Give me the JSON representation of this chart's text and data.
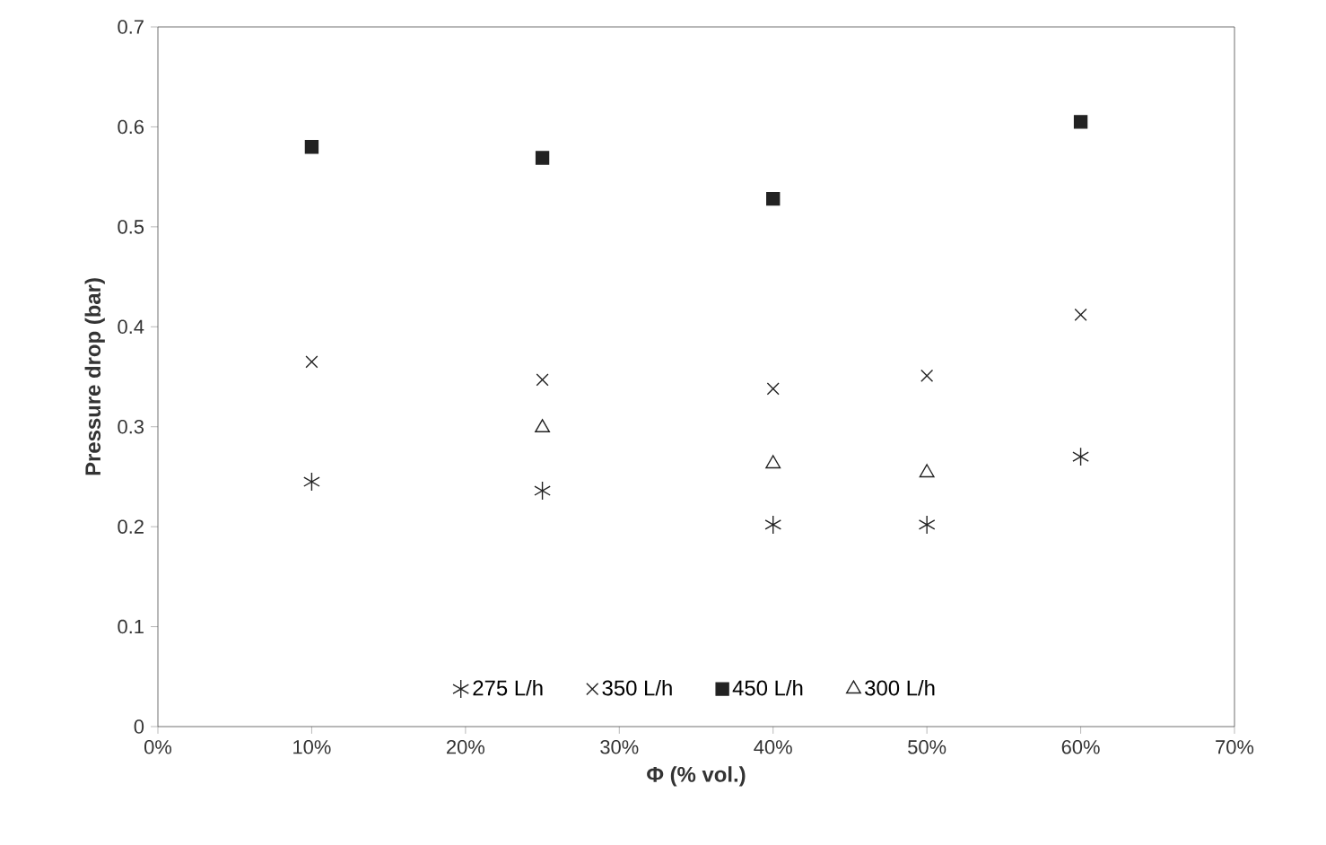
{
  "chart_data": {
    "type": "scatter",
    "xlabel": "Φ (% vol.)",
    "ylabel": "Pressure drop (bar)",
    "xlim": [
      0,
      70
    ],
    "ylim": [
      0,
      0.7
    ],
    "xticks": [
      {
        "value": 0,
        "label": "0%"
      },
      {
        "value": 10,
        "label": "10%"
      },
      {
        "value": 20,
        "label": "20%"
      },
      {
        "value": 30,
        "label": "30%"
      },
      {
        "value": 40,
        "label": "40%"
      },
      {
        "value": 50,
        "label": "50%"
      },
      {
        "value": 60,
        "label": "60%"
      },
      {
        "value": 70,
        "label": "70%"
      }
    ],
    "yticks": [
      0,
      0.1,
      0.2,
      0.3,
      0.4,
      0.5,
      0.6,
      0.7
    ],
    "grid": false,
    "legend": "bottom",
    "series": [
      {
        "name": "275 L/h",
        "color": "#222222",
        "x": [
          10,
          25,
          40,
          50,
          60
        ],
        "values": [
          0.245,
          0.236,
          0.202,
          0.202,
          0.27
        ]
      },
      {
        "name": "350 L/h",
        "color": "#222222",
        "marker": "cross",
        "x": [
          10,
          25,
          40,
          50,
          60
        ],
        "values": [
          0.365,
          0.347,
          0.338,
          0.351,
          0.412
        ]
      },
      {
        "name": "450 L/h",
        "color": "#222222",
        "marker": "square",
        "x": [
          10,
          25,
          40,
          60
        ],
        "values": [
          0.58,
          0.569,
          0.528,
          0.605
        ]
      },
      {
        "name": "300 L/h",
        "color": "#222222",
        "marker": "triangle",
        "x": [
          25,
          40,
          50
        ],
        "values": [
          0.299,
          0.263,
          0.254
        ]
      }
    ]
  }
}
